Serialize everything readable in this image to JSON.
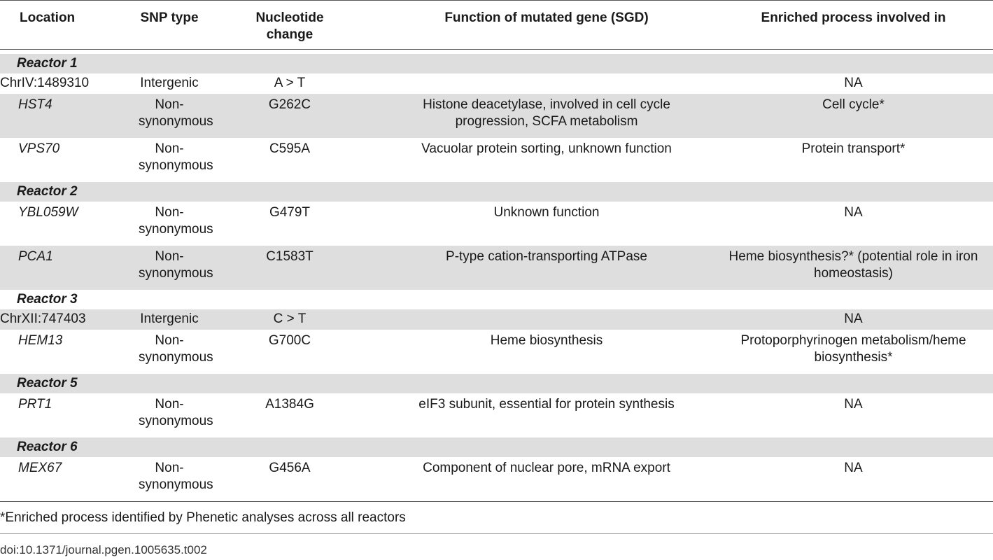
{
  "headers": {
    "location": "Location",
    "snp_type": "SNP type",
    "nucleotide_line1": "Nucleotide",
    "nucleotide_line2": "change",
    "function": "Function of mutated gene (SGD)",
    "process": "Enriched process involved in"
  },
  "sections": [
    {
      "title": "Reactor 1",
      "rows": [
        {
          "location": "ChrIV:1489310",
          "gene": false,
          "snp1": "Intergenic",
          "snp2": "",
          "change": "A > T",
          "function1": "",
          "function2": "",
          "process1": "NA",
          "process2": ""
        },
        {
          "location": "HST4",
          "gene": true,
          "snp1": "Non-",
          "snp2": "synonymous",
          "change": "G262C",
          "function1": "Histone deacetylase, involved in cell cycle",
          "function2": "progression, SCFA metabolism",
          "process1": "Cell cycle*",
          "process2": ""
        },
        {
          "location": "VPS70",
          "gene": true,
          "snp1": "Non-",
          "snp2": "synonymous",
          "change": "C595A",
          "function1": "Vacuolar protein sorting, unknown function",
          "function2": "",
          "process1": "Protein transport*",
          "process2": ""
        }
      ]
    },
    {
      "title": "Reactor 2",
      "rows": [
        {
          "location": "YBL059W",
          "gene": true,
          "snp1": "Non-",
          "snp2": "synonymous",
          "change": "G479T",
          "function1": "Unknown function",
          "function2": "",
          "process1": "NA",
          "process2": ""
        },
        {
          "location": "PCA1",
          "gene": true,
          "snp1": "Non-",
          "snp2": "synonymous",
          "change": "C1583T",
          "function1": "P-type cation-transporting ATPase",
          "function2": "",
          "process1": "Heme biosynthesis?* (potential role in iron",
          "process2": "homeostasis)"
        }
      ]
    },
    {
      "title": "Reactor 3",
      "rows": [
        {
          "location": "ChrXII:747403",
          "gene": false,
          "snp1": "Intergenic",
          "snp2": "",
          "change": "C > T",
          "function1": "",
          "function2": "",
          "process1": "NA",
          "process2": ""
        },
        {
          "location": "HEM13",
          "gene": true,
          "snp1": "Non-",
          "snp2": "synonymous",
          "change": "G700C",
          "function1": "Heme biosynthesis",
          "function2": "",
          "process1": "Protoporphyrinogen metabolism/heme",
          "process2": "biosynthesis*"
        }
      ]
    },
    {
      "title": "Reactor 5",
      "rows": [
        {
          "location": "PRT1",
          "gene": true,
          "snp1": "Non-",
          "snp2": "synonymous",
          "change": "A1384G",
          "function1": "eIF3 subunit, essential for protein synthesis",
          "function2": "",
          "process1": "NA",
          "process2": ""
        }
      ]
    },
    {
      "title": "Reactor 6",
      "rows": [
        {
          "location": "MEX67",
          "gene": true,
          "snp1": "Non-",
          "snp2": "synonymous",
          "change": "G456A",
          "function1": "Component of nuclear pore, mRNA export",
          "function2": "",
          "process1": "NA",
          "process2": ""
        }
      ]
    }
  ],
  "footnote": "*Enriched process identified by Phenetic analyses across all reactors",
  "doi": "doi:10.1371/journal.pgen.1005635.t002"
}
